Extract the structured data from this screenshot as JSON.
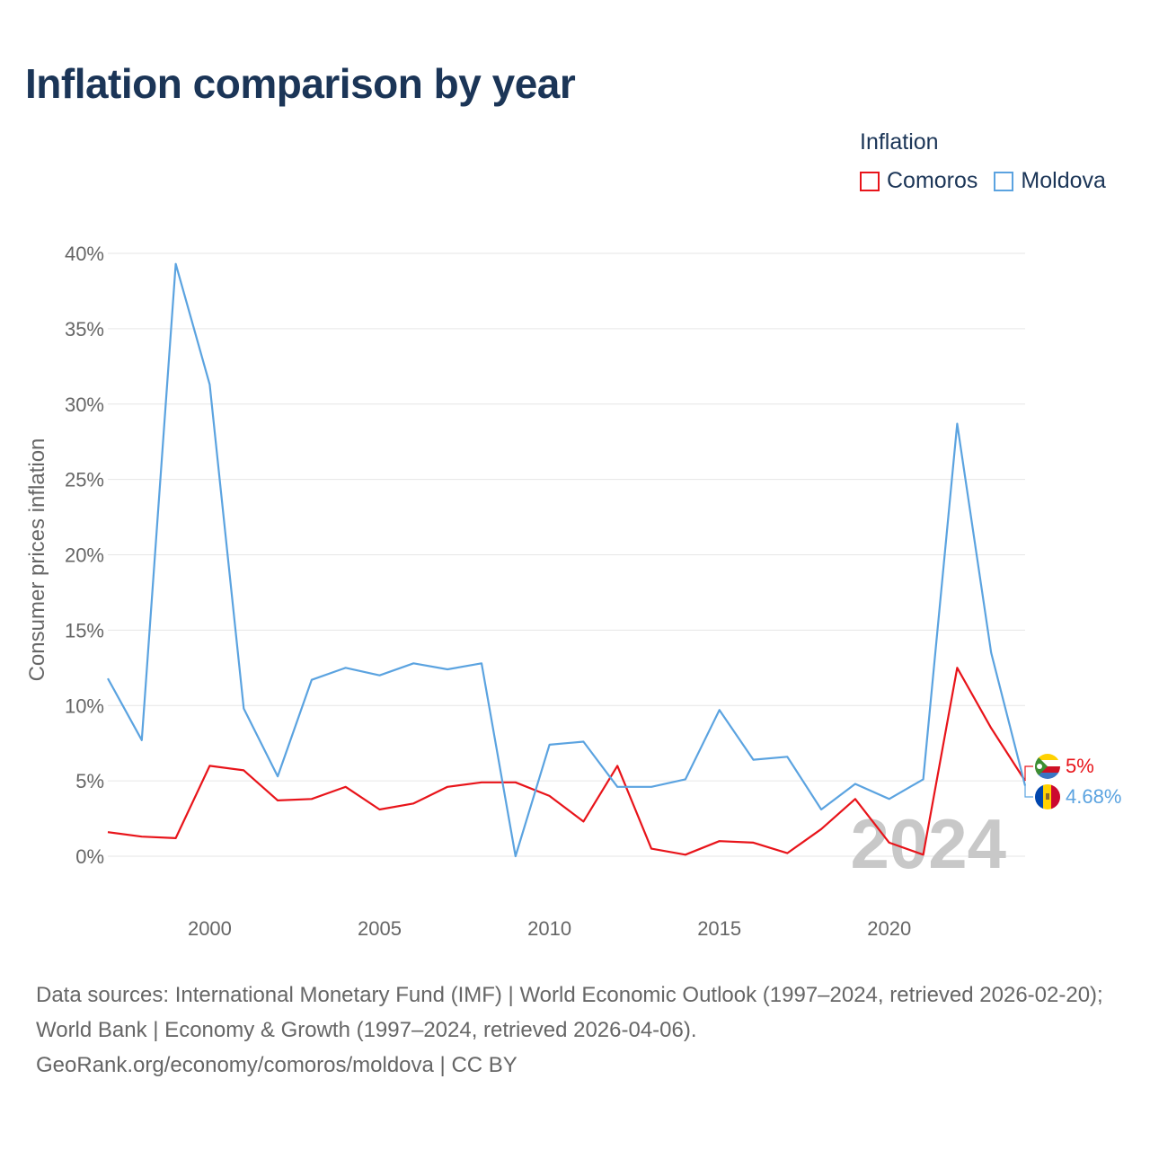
{
  "title": "Inflation comparison by year",
  "legend": {
    "title": "Inflation",
    "items": [
      {
        "label": "Comoros",
        "color": "#e8141a"
      },
      {
        "label": "Moldova",
        "color": "#5ba3e0"
      }
    ]
  },
  "source": {
    "line1": "Data sources: International Monetary Fund (IMF) | World Economic Outlook (1997–2024, retrieved 2026-02-20); World Bank | Economy & Growth (1997–2024, retrieved 2026-04-06).",
    "line2": "GeoRank.org/economy/comoros/moldova | CC BY"
  },
  "chart_data": {
    "type": "line",
    "title": "Inflation comparison by year",
    "xlabel": "",
    "ylabel": "Consumer prices inflation",
    "xlim": [
      1997,
      2024
    ],
    "ylim": [
      0,
      40
    ],
    "grid": true,
    "legend_position": "top-right",
    "watermark": "2024",
    "x_ticks": [
      2000,
      2005,
      2010,
      2015,
      2020
    ],
    "y_ticks": [
      0,
      5,
      10,
      15,
      20,
      25,
      30,
      35,
      40
    ],
    "y_tick_labels": [
      "0%",
      "5%",
      "10%",
      "15%",
      "20%",
      "25%",
      "30%",
      "35%",
      "40%"
    ],
    "x": [
      1997,
      1998,
      1999,
      2000,
      2001,
      2002,
      2003,
      2004,
      2005,
      2006,
      2007,
      2008,
      2009,
      2010,
      2011,
      2012,
      2013,
      2014,
      2015,
      2016,
      2017,
      2018,
      2019,
      2020,
      2021,
      2022,
      2023,
      2024
    ],
    "series": [
      {
        "name": "Comoros",
        "color": "#e8141a",
        "values": [
          1.6,
          1.3,
          1.2,
          6.0,
          5.7,
          3.7,
          3.8,
          4.6,
          3.1,
          3.5,
          4.6,
          4.9,
          4.9,
          4.0,
          2.3,
          6.0,
          0.5,
          0.1,
          1.0,
          0.9,
          0.2,
          1.8,
          3.8,
          0.9,
          0.1,
          12.5,
          8.5,
          5.0
        ],
        "end_label": "5%"
      },
      {
        "name": "Moldova",
        "color": "#5ba3e0",
        "values": [
          11.8,
          7.7,
          39.3,
          31.3,
          9.8,
          5.3,
          11.7,
          12.5,
          12.0,
          12.8,
          12.4,
          12.8,
          0.0,
          7.4,
          7.6,
          4.6,
          4.6,
          5.1,
          9.7,
          6.4,
          6.6,
          3.1,
          4.8,
          3.8,
          5.1,
          28.7,
          13.5,
          4.68
        ],
        "end_label": "4.68%"
      }
    ]
  }
}
